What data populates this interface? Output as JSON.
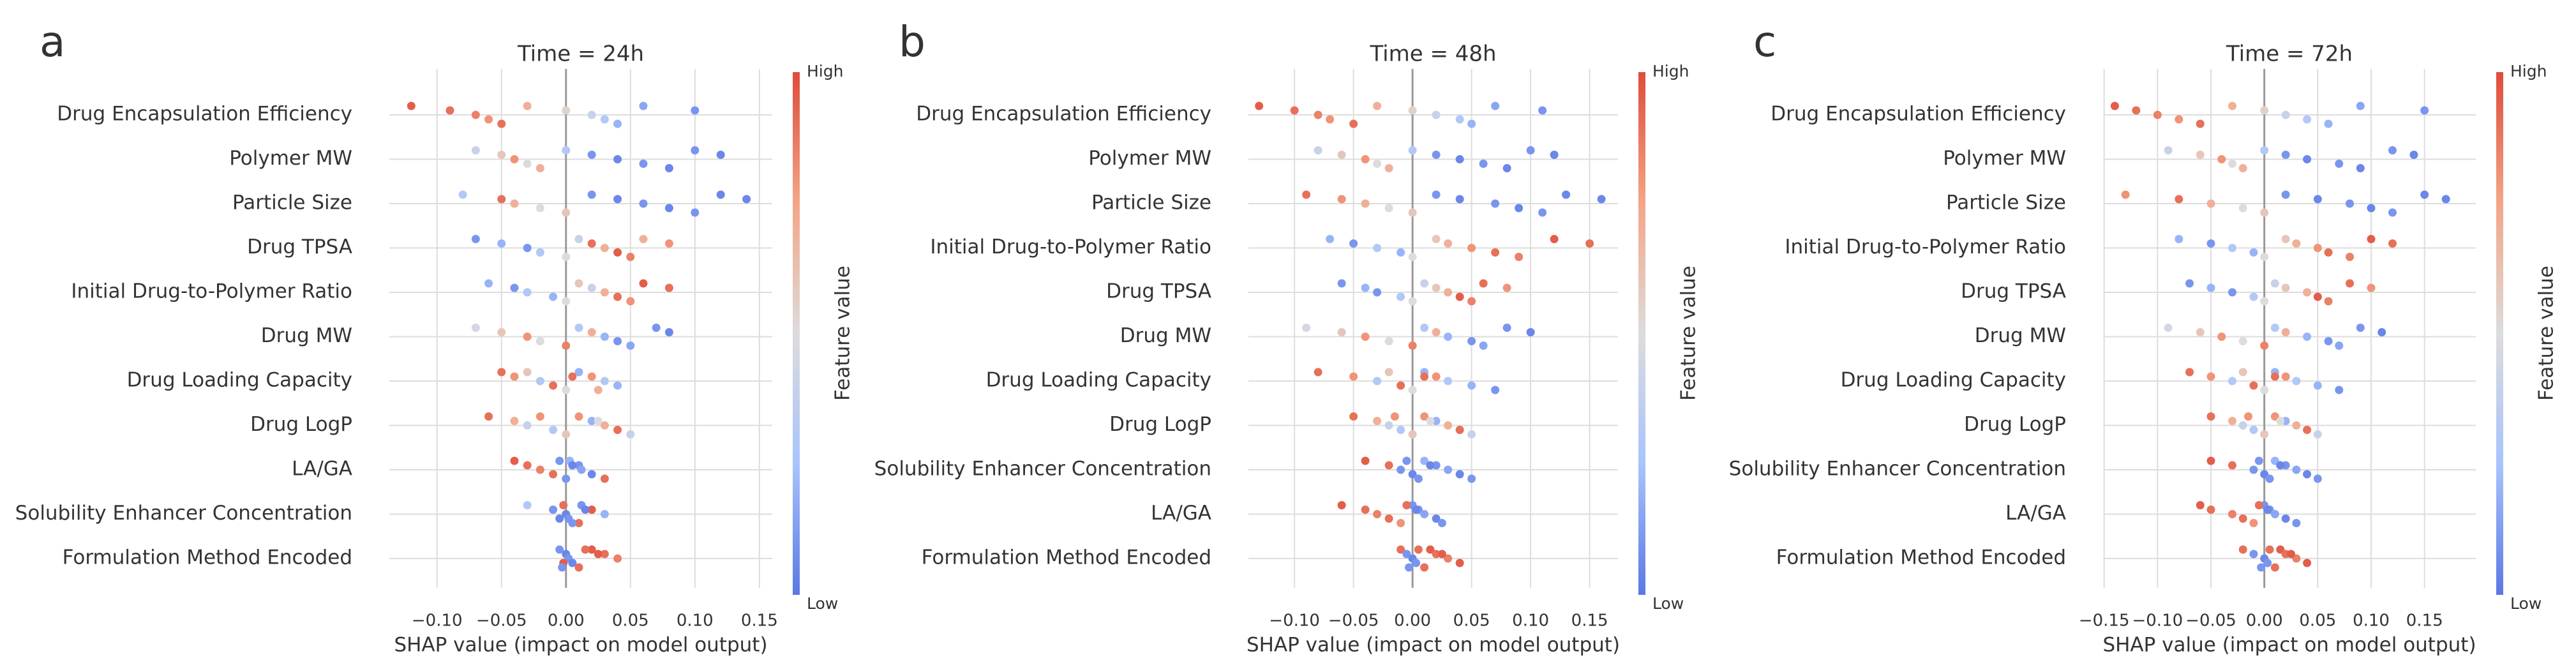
{
  "chart_data": [
    {
      "type": "beeswarm",
      "panel_label": "a",
      "title": "Time = 24h",
      "xlabel": "SHAP value (impact on model output)",
      "colorbar_label": "Feature value",
      "colorbar_high": "High",
      "colorbar_low": "Low",
      "colormap": [
        "#5a78e4",
        "#a8c3fd",
        "#dcdcdc",
        "#f4a586",
        "#de4c3b"
      ],
      "grid": true,
      "xlim": [
        -0.137,
        0.16
      ],
      "xticks": [
        {
          "value": -0.1,
          "label": "−0.10"
        },
        {
          "value": -0.05,
          "label": "−0.05"
        },
        {
          "value": 0,
          "label": "0.00"
        },
        {
          "value": 0.05,
          "label": "0.05"
        },
        {
          "value": 0.1,
          "label": "0.10"
        },
        {
          "value": 0.15,
          "label": "0.15"
        }
      ],
      "categories": [
        "Drug Encapsulation Efficiency",
        "Polymer MW",
        "Particle Size",
        "Drug TPSA",
        "Initial Drug-to-Polymer Ratio",
        "Drug MW",
        "Drug Loading Capacity",
        "Drug LogP",
        "LA/GA",
        "Solubility Enhancer Concentration",
        "Formulation Method Encoded"
      ],
      "shap": [
        [
          -0.12,
          -0.09,
          -0.07,
          -0.06,
          -0.05,
          -0.03,
          0.0,
          0.02,
          0.03,
          0.04,
          0.06,
          0.1
        ],
        [
          -0.07,
          -0.05,
          -0.04,
          -0.03,
          -0.02,
          0.0,
          0.02,
          0.04,
          0.06,
          0.08,
          0.1,
          0.12
        ],
        [
          -0.08,
          -0.05,
          -0.04,
          -0.02,
          0.0,
          0.02,
          0.04,
          0.06,
          0.08,
          0.1,
          0.12,
          0.14
        ],
        [
          -0.07,
          -0.05,
          -0.03,
          -0.02,
          0.0,
          0.01,
          0.02,
          0.03,
          0.04,
          0.05,
          0.06,
          0.08
        ],
        [
          -0.06,
          -0.04,
          -0.03,
          -0.01,
          0.0,
          0.01,
          0.02,
          0.03,
          0.04,
          0.05,
          0.06,
          0.08
        ],
        [
          -0.07,
          -0.05,
          -0.03,
          -0.02,
          0.0,
          0.01,
          0.02,
          0.03,
          0.04,
          0.05,
          0.07,
          0.08
        ],
        [
          -0.05,
          -0.04,
          -0.02,
          -0.01,
          0.0,
          0.01,
          0.02,
          0.03,
          0.04,
          0.025,
          -0.03,
          0.005
        ],
        [
          -0.06,
          -0.04,
          -0.03,
          -0.01,
          0.0,
          0.01,
          0.02,
          0.03,
          0.04,
          0.05,
          -0.02,
          0.025
        ],
        [
          -0.04,
          -0.03,
          -0.02,
          -0.01,
          0.0,
          0.003,
          0.01,
          0.012,
          0.02,
          0.03,
          -0.005,
          0.005
        ],
        [
          -0.03,
          -0.01,
          0.0,
          0.002,
          0.01,
          0.012,
          0.02,
          0.03,
          -0.005,
          0.005,
          -0.002,
          0.015
        ],
        [
          -0.005,
          0.0,
          0.002,
          0.005,
          0.01,
          0.02,
          0.03,
          0.04,
          -0.002,
          -0.003,
          0.015,
          0.025
        ]
      ],
      "feature_values": [
        [
          0.95,
          0.9,
          0.85,
          0.8,
          0.9,
          0.7,
          0.55,
          0.4,
          0.3,
          0.2,
          0.15,
          0.1
        ],
        [
          0.4,
          0.6,
          0.8,
          0.5,
          0.7,
          0.3,
          0.1,
          0.05,
          0.1,
          0.05,
          0.1,
          0.05
        ],
        [
          0.3,
          0.9,
          0.7,
          0.5,
          0.6,
          0.1,
          0.05,
          0.1,
          0.05,
          0.1,
          0.05,
          0.05
        ],
        [
          0.1,
          0.2,
          0.1,
          0.3,
          0.5,
          0.4,
          0.9,
          0.7,
          0.95,
          0.85,
          0.7,
          0.8
        ],
        [
          0.2,
          0.1,
          0.3,
          0.2,
          0.5,
          0.6,
          0.4,
          0.7,
          0.9,
          0.8,
          0.95,
          0.9
        ],
        [
          0.45,
          0.6,
          0.8,
          0.5,
          0.85,
          0.3,
          0.7,
          0.2,
          0.1,
          0.15,
          0.1,
          0.05
        ],
        [
          0.9,
          0.8,
          0.3,
          0.9,
          0.5,
          0.2,
          0.8,
          0.3,
          0.2,
          0.7,
          0.6,
          0.9
        ],
        [
          0.9,
          0.7,
          0.4,
          0.3,
          0.6,
          0.8,
          0.2,
          0.7,
          0.9,
          0.4,
          0.8,
          0.5
        ],
        [
          0.95,
          0.9,
          0.85,
          0.9,
          0.1,
          0.2,
          0.1,
          0.15,
          0.05,
          0.9,
          0.1,
          0.05
        ],
        [
          0.3,
          0.1,
          0.05,
          0.1,
          0.9,
          0.1,
          0.95,
          0.2,
          0.05,
          0.1,
          0.9,
          0.05
        ],
        [
          0.1,
          0.05,
          0.1,
          0.05,
          0.9,
          0.95,
          0.9,
          0.85,
          0.95,
          0.1,
          0.9,
          0.95
        ]
      ]
    },
    {
      "type": "beeswarm",
      "panel_label": "b",
      "title": "Time = 48h",
      "xlabel": "SHAP value (impact on model output)",
      "colorbar_label": "Feature value",
      "colorbar_high": "High",
      "colorbar_low": "Low",
      "colormap": [
        "#5a78e4",
        "#a8c3fd",
        "#dcdcdc",
        "#f4a586",
        "#de4c3b"
      ],
      "grid": true,
      "xlim": [
        -0.139,
        0.174
      ],
      "xticks": [
        {
          "value": -0.1,
          "label": "−0.10"
        },
        {
          "value": -0.05,
          "label": "−0.05"
        },
        {
          "value": 0,
          "label": "0.00"
        },
        {
          "value": 0.05,
          "label": "0.05"
        },
        {
          "value": 0.1,
          "label": "0.10"
        },
        {
          "value": 0.15,
          "label": "0.15"
        }
      ],
      "categories": [
        "Drug Encapsulation Efficiency",
        "Polymer MW",
        "Particle Size",
        "Initial Drug-to-Polymer Ratio",
        "Drug TPSA",
        "Drug MW",
        "Drug Loading Capacity",
        "Drug LogP",
        "Solubility Enhancer Concentration",
        "LA/GA",
        "Formulation Method Encoded"
      ],
      "shap": [
        [
          -0.13,
          -0.1,
          -0.08,
          -0.07,
          -0.05,
          -0.03,
          0.0,
          0.02,
          0.04,
          0.05,
          0.07,
          0.11
        ],
        [
          -0.08,
          -0.06,
          -0.04,
          -0.03,
          -0.02,
          0.0,
          0.02,
          0.04,
          0.06,
          0.08,
          0.1,
          0.12
        ],
        [
          -0.09,
          -0.06,
          -0.04,
          -0.02,
          0.0,
          0.02,
          0.04,
          0.07,
          0.09,
          0.11,
          0.13,
          0.16
        ],
        [
          -0.07,
          -0.05,
          -0.03,
          -0.01,
          0.0,
          0.02,
          0.03,
          0.05,
          0.07,
          0.09,
          0.12,
          0.15
        ],
        [
          -0.06,
          -0.04,
          -0.03,
          -0.01,
          0.0,
          0.01,
          0.02,
          0.03,
          0.04,
          0.05,
          0.06,
          0.08
        ],
        [
          -0.09,
          -0.06,
          -0.04,
          -0.02,
          0.0,
          0.01,
          0.02,
          0.03,
          0.05,
          0.06,
          0.08,
          0.1
        ],
        [
          -0.08,
          -0.05,
          -0.03,
          -0.01,
          0.0,
          0.01,
          0.02,
          0.03,
          0.05,
          0.07,
          -0.02,
          0.01
        ],
        [
          -0.05,
          -0.03,
          -0.02,
          -0.01,
          0.0,
          0.01,
          0.02,
          0.03,
          0.04,
          0.05,
          -0.015,
          0.015
        ],
        [
          -0.04,
          -0.02,
          -0.01,
          0.0,
          0.005,
          0.01,
          0.02,
          0.03,
          0.04,
          0.05,
          -0.005,
          0.015
        ],
        [
          -0.06,
          -0.04,
          -0.03,
          -0.02,
          -0.01,
          0.0,
          0.005,
          0.01,
          0.02,
          0.025,
          -0.005,
          0.003
        ],
        [
          -0.01,
          -0.005,
          0.0,
          0.003,
          0.01,
          0.015,
          0.02,
          0.03,
          0.04,
          -0.003,
          0.005,
          0.025
        ]
      ],
      "feature_values": [
        [
          0.95,
          0.9,
          0.85,
          0.8,
          0.9,
          0.7,
          0.55,
          0.4,
          0.3,
          0.2,
          0.15,
          0.1
        ],
        [
          0.4,
          0.6,
          0.8,
          0.5,
          0.7,
          0.3,
          0.1,
          0.05,
          0.1,
          0.05,
          0.1,
          0.05
        ],
        [
          0.9,
          0.8,
          0.7,
          0.5,
          0.6,
          0.1,
          0.05,
          0.1,
          0.05,
          0.1,
          0.05,
          0.05
        ],
        [
          0.2,
          0.1,
          0.3,
          0.2,
          0.5,
          0.6,
          0.7,
          0.8,
          0.9,
          0.85,
          0.95,
          0.9
        ],
        [
          0.1,
          0.2,
          0.1,
          0.3,
          0.5,
          0.4,
          0.6,
          0.7,
          0.95,
          0.85,
          0.9,
          0.8
        ],
        [
          0.45,
          0.6,
          0.8,
          0.5,
          0.85,
          0.3,
          0.7,
          0.2,
          0.1,
          0.15,
          0.1,
          0.05
        ],
        [
          0.9,
          0.8,
          0.3,
          0.9,
          0.5,
          0.2,
          0.8,
          0.3,
          0.2,
          0.1,
          0.6,
          0.9
        ],
        [
          0.9,
          0.7,
          0.4,
          0.3,
          0.6,
          0.8,
          0.2,
          0.7,
          0.9,
          0.4,
          0.8,
          0.5
        ],
        [
          0.95,
          0.9,
          0.1,
          0.05,
          0.1,
          0.2,
          0.1,
          0.15,
          0.05,
          0.1,
          0.1,
          0.05
        ],
        [
          0.95,
          0.9,
          0.85,
          0.9,
          0.8,
          0.1,
          0.1,
          0.15,
          0.05,
          0.1,
          0.9,
          0.05
        ],
        [
          0.9,
          0.1,
          0.05,
          0.1,
          0.9,
          0.95,
          0.9,
          0.85,
          0.95,
          0.1,
          0.9,
          0.95
        ]
      ]
    },
    {
      "type": "beeswarm",
      "panel_label": "c",
      "title": "Time = 72h",
      "xlabel": "SHAP value (impact on model output)",
      "colorbar_label": "Feature value",
      "colorbar_high": "High",
      "colorbar_low": "Low",
      "colormap": [
        "#5a78e4",
        "#a8c3fd",
        "#dcdcdc",
        "#f4a586",
        "#de4c3b"
      ],
      "grid": true,
      "xlim": [
        -0.151,
        0.198
      ],
      "xticks": [
        {
          "value": -0.15,
          "label": "−0.15"
        },
        {
          "value": -0.1,
          "label": "−0.10"
        },
        {
          "value": -0.05,
          "label": "−0.05"
        },
        {
          "value": 0,
          "label": "0.00"
        },
        {
          "value": 0.05,
          "label": "0.05"
        },
        {
          "value": 0.1,
          "label": "0.10"
        },
        {
          "value": 0.15,
          "label": "0.15"
        }
      ],
      "categories": [
        "Drug Encapsulation Efficiency",
        "Polymer MW",
        "Particle Size",
        "Initial Drug-to-Polymer Ratio",
        "Drug TPSA",
        "Drug MW",
        "Drug Loading Capacity",
        "Drug LogP",
        "Solubility Enhancer Concentration",
        "LA/GA",
        "Formulation Method Encoded"
      ],
      "shap": [
        [
          -0.14,
          -0.12,
          -0.1,
          -0.08,
          -0.06,
          -0.03,
          0.0,
          0.02,
          0.04,
          0.06,
          0.09,
          0.15
        ],
        [
          -0.09,
          -0.06,
          -0.04,
          -0.03,
          -0.02,
          0.0,
          0.02,
          0.04,
          0.07,
          0.09,
          0.12,
          0.14
        ],
        [
          -0.13,
          -0.08,
          -0.05,
          -0.02,
          0.0,
          0.02,
          0.05,
          0.08,
          0.1,
          0.12,
          0.15,
          0.17
        ],
        [
          -0.08,
          -0.05,
          -0.03,
          -0.01,
          0.0,
          0.02,
          0.03,
          0.05,
          0.06,
          0.08,
          0.1,
          0.12
        ],
        [
          -0.07,
          -0.05,
          -0.03,
          -0.01,
          0.0,
          0.01,
          0.02,
          0.04,
          0.05,
          0.06,
          0.08,
          0.1
        ],
        [
          -0.09,
          -0.06,
          -0.04,
          -0.02,
          0.0,
          0.01,
          0.02,
          0.04,
          0.06,
          0.07,
          0.09,
          0.11
        ],
        [
          -0.07,
          -0.05,
          -0.03,
          -0.01,
          0.0,
          0.01,
          0.02,
          0.03,
          0.05,
          0.07,
          -0.02,
          0.01
        ],
        [
          -0.05,
          -0.03,
          -0.02,
          -0.01,
          0.0,
          0.01,
          0.02,
          0.03,
          0.04,
          0.05,
          -0.015,
          0.015
        ],
        [
          -0.05,
          -0.03,
          -0.01,
          0.0,
          0.005,
          0.01,
          0.02,
          0.03,
          0.04,
          0.05,
          -0.005,
          0.015
        ],
        [
          -0.06,
          -0.05,
          -0.03,
          -0.02,
          -0.01,
          0.0,
          0.005,
          0.01,
          0.02,
          0.03,
          -0.005,
          0.003
        ],
        [
          -0.02,
          -0.01,
          0.0,
          0.003,
          0.01,
          0.015,
          0.02,
          0.03,
          0.04,
          -0.003,
          0.005,
          0.025
        ]
      ],
      "feature_values": [
        [
          0.95,
          0.9,
          0.85,
          0.8,
          0.9,
          0.7,
          0.55,
          0.4,
          0.3,
          0.2,
          0.15,
          0.1
        ],
        [
          0.4,
          0.6,
          0.8,
          0.5,
          0.7,
          0.3,
          0.1,
          0.05,
          0.1,
          0.05,
          0.1,
          0.05
        ],
        [
          0.8,
          0.9,
          0.7,
          0.5,
          0.6,
          0.1,
          0.05,
          0.1,
          0.05,
          0.1,
          0.05,
          0.05
        ],
        [
          0.2,
          0.1,
          0.3,
          0.2,
          0.5,
          0.6,
          0.7,
          0.8,
          0.9,
          0.85,
          0.95,
          0.9
        ],
        [
          0.1,
          0.2,
          0.1,
          0.3,
          0.5,
          0.4,
          0.6,
          0.7,
          0.95,
          0.85,
          0.9,
          0.8
        ],
        [
          0.45,
          0.6,
          0.8,
          0.5,
          0.85,
          0.3,
          0.7,
          0.2,
          0.1,
          0.15,
          0.1,
          0.05
        ],
        [
          0.9,
          0.8,
          0.3,
          0.9,
          0.5,
          0.2,
          0.8,
          0.3,
          0.2,
          0.1,
          0.6,
          0.9
        ],
        [
          0.9,
          0.7,
          0.4,
          0.3,
          0.6,
          0.8,
          0.2,
          0.7,
          0.9,
          0.4,
          0.8,
          0.5
        ],
        [
          0.95,
          0.9,
          0.1,
          0.05,
          0.1,
          0.2,
          0.1,
          0.15,
          0.05,
          0.1,
          0.1,
          0.05
        ],
        [
          0.95,
          0.9,
          0.85,
          0.9,
          0.8,
          0.1,
          0.1,
          0.15,
          0.05,
          0.1,
          0.9,
          0.05
        ],
        [
          0.9,
          0.1,
          0.05,
          0.1,
          0.9,
          0.95,
          0.9,
          0.85,
          0.95,
          0.1,
          0.9,
          0.95
        ]
      ]
    }
  ]
}
